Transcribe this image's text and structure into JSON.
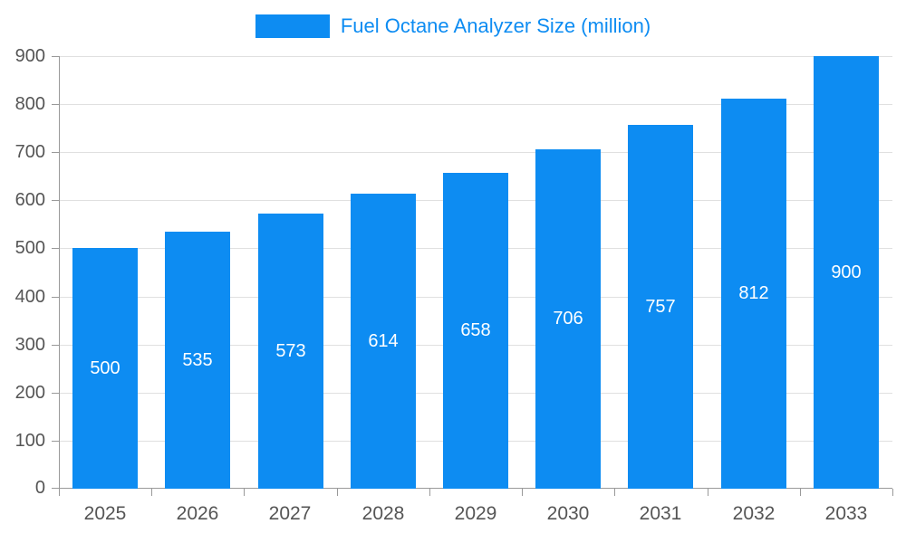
{
  "palette": {
    "bar": "#0d8cf2",
    "bar_label": "#ffffff",
    "axis_text": "#555555",
    "grid": "#e0e0e0",
    "axis_line": "#999999",
    "legend_text": "#0d8cf2",
    "bg": "#ffffff"
  },
  "chart_data": {
    "type": "bar",
    "title": "Fuel Octane Analyzer Size (million)",
    "legend": "Fuel Octane Analyzer Size (million)",
    "legend_position": "top",
    "categories": [
      "2025",
      "2026",
      "2027",
      "2028",
      "2029",
      "2030",
      "2031",
      "2032",
      "2033"
    ],
    "series": [
      {
        "name": "Fuel Octane Analyzer Size (million)",
        "values": [
          500,
          535,
          573,
          614,
          658,
          706,
          757,
          812,
          900
        ]
      }
    ],
    "xlabel": "",
    "ylabel": "",
    "ylim": [
      0,
      900
    ],
    "ytick_step": 100,
    "grid": true,
    "value_labels": "inside-center"
  }
}
